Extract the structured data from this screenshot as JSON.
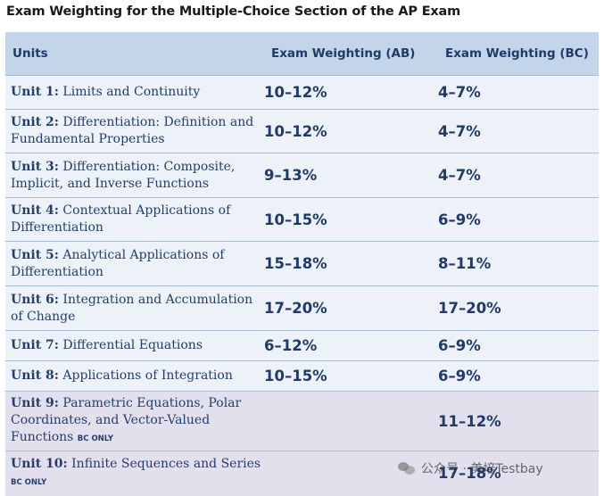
{
  "title": "Exam Weighting for the Multiple-Choice Section of the AP Exam",
  "headers": {
    "units": "Units",
    "ab": "Exam Weighting (AB)",
    "bc": "Exam Weighting (BC)"
  },
  "rows": [
    {
      "num": "Unit 1:",
      "name": "Limits and Continuity",
      "tag": "",
      "ab": "10–12%",
      "bc": "4–7%"
    },
    {
      "num": "Unit 2:",
      "name": "Differentiation: Definition and Fundamental Properties",
      "tag": "",
      "ab": "10–12%",
      "bc": "4–7%"
    },
    {
      "num": "Unit 3:",
      "name": "Differentiation: Composite, Implicit, and Inverse Functions",
      "tag": "",
      "ab": "9–13%",
      "bc": "4–7%"
    },
    {
      "num": "Unit 4:",
      "name": "Contextual Applications of Differentiation",
      "tag": "",
      "ab": "10–15%",
      "bc": "6–9%"
    },
    {
      "num": "Unit 5:",
      "name": "Analytical Applications of Differentiation",
      "tag": "",
      "ab": "15–18%",
      "bc": "8–11%"
    },
    {
      "num": "Unit 6:",
      "name": "Integration and Accumulation of Change",
      "tag": "",
      "ab": "17–20%",
      "bc": "17–20%"
    },
    {
      "num": "Unit 7:",
      "name": "Differential Equations",
      "tag": "",
      "ab": "6–12%",
      "bc": "6–9%"
    },
    {
      "num": "Unit 8:",
      "name": "Applications of Integration",
      "tag": "",
      "ab": "10–15%",
      "bc": "6–9%"
    },
    {
      "num": "Unit 9:",
      "name": "Parametric Equations, Polar Coordinates, and Vector-Valued Functions",
      "tag": "BC ONLY",
      "ab": "",
      "bc": "11–12%"
    },
    {
      "num": "Unit 10:",
      "name": "Infinite Sequences and Series",
      "tag": "BC ONLY",
      "ab": "",
      "bc": "17–18%"
    }
  ],
  "watermark": "公众号 · 美培Testbay",
  "colors": {
    "header_bg": "#c3d6e9",
    "row_bg": "#edf2f8",
    "bc_row_bg": "#e3e0ee",
    "text": "#1f3a6b"
  }
}
